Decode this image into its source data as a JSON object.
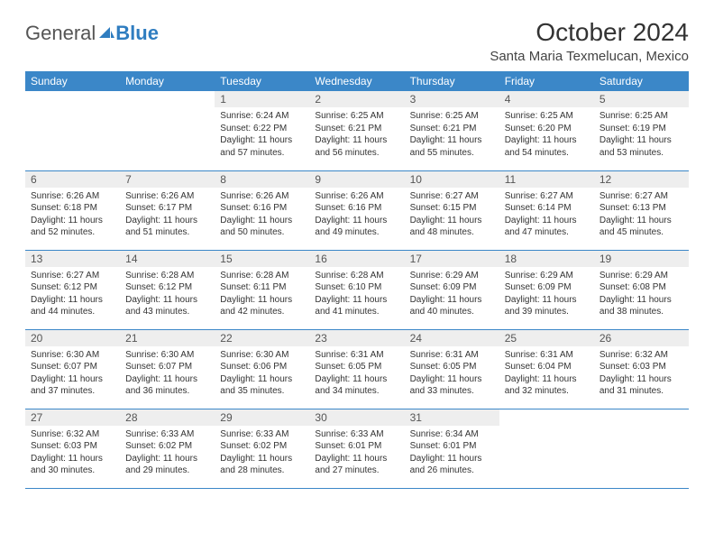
{
  "logo": {
    "text1": "General",
    "text2": "Blue"
  },
  "title": "October 2024",
  "location": "Santa Maria Texmelucan, Mexico",
  "colors": {
    "header_bg": "#3b87c8",
    "header_text": "#ffffff",
    "daynum_bg": "#eeeeee",
    "border": "#3b87c8",
    "logo_blue": "#2f7dc0"
  },
  "weekdays": [
    "Sunday",
    "Monday",
    "Tuesday",
    "Wednesday",
    "Thursday",
    "Friday",
    "Saturday"
  ],
  "weeks": [
    [
      null,
      null,
      {
        "n": "1",
        "sr": "6:24 AM",
        "ss": "6:22 PM",
        "dl": "11 hours and 57 minutes."
      },
      {
        "n": "2",
        "sr": "6:25 AM",
        "ss": "6:21 PM",
        "dl": "11 hours and 56 minutes."
      },
      {
        "n": "3",
        "sr": "6:25 AM",
        "ss": "6:21 PM",
        "dl": "11 hours and 55 minutes."
      },
      {
        "n": "4",
        "sr": "6:25 AM",
        "ss": "6:20 PM",
        "dl": "11 hours and 54 minutes."
      },
      {
        "n": "5",
        "sr": "6:25 AM",
        "ss": "6:19 PM",
        "dl": "11 hours and 53 minutes."
      }
    ],
    [
      {
        "n": "6",
        "sr": "6:26 AM",
        "ss": "6:18 PM",
        "dl": "11 hours and 52 minutes."
      },
      {
        "n": "7",
        "sr": "6:26 AM",
        "ss": "6:17 PM",
        "dl": "11 hours and 51 minutes."
      },
      {
        "n": "8",
        "sr": "6:26 AM",
        "ss": "6:16 PM",
        "dl": "11 hours and 50 minutes."
      },
      {
        "n": "9",
        "sr": "6:26 AM",
        "ss": "6:16 PM",
        "dl": "11 hours and 49 minutes."
      },
      {
        "n": "10",
        "sr": "6:27 AM",
        "ss": "6:15 PM",
        "dl": "11 hours and 48 minutes."
      },
      {
        "n": "11",
        "sr": "6:27 AM",
        "ss": "6:14 PM",
        "dl": "11 hours and 47 minutes."
      },
      {
        "n": "12",
        "sr": "6:27 AM",
        "ss": "6:13 PM",
        "dl": "11 hours and 45 minutes."
      }
    ],
    [
      {
        "n": "13",
        "sr": "6:27 AM",
        "ss": "6:12 PM",
        "dl": "11 hours and 44 minutes."
      },
      {
        "n": "14",
        "sr": "6:28 AM",
        "ss": "6:12 PM",
        "dl": "11 hours and 43 minutes."
      },
      {
        "n": "15",
        "sr": "6:28 AM",
        "ss": "6:11 PM",
        "dl": "11 hours and 42 minutes."
      },
      {
        "n": "16",
        "sr": "6:28 AM",
        "ss": "6:10 PM",
        "dl": "11 hours and 41 minutes."
      },
      {
        "n": "17",
        "sr": "6:29 AM",
        "ss": "6:09 PM",
        "dl": "11 hours and 40 minutes."
      },
      {
        "n": "18",
        "sr": "6:29 AM",
        "ss": "6:09 PM",
        "dl": "11 hours and 39 minutes."
      },
      {
        "n": "19",
        "sr": "6:29 AM",
        "ss": "6:08 PM",
        "dl": "11 hours and 38 minutes."
      }
    ],
    [
      {
        "n": "20",
        "sr": "6:30 AM",
        "ss": "6:07 PM",
        "dl": "11 hours and 37 minutes."
      },
      {
        "n": "21",
        "sr": "6:30 AM",
        "ss": "6:07 PM",
        "dl": "11 hours and 36 minutes."
      },
      {
        "n": "22",
        "sr": "6:30 AM",
        "ss": "6:06 PM",
        "dl": "11 hours and 35 minutes."
      },
      {
        "n": "23",
        "sr": "6:31 AM",
        "ss": "6:05 PM",
        "dl": "11 hours and 34 minutes."
      },
      {
        "n": "24",
        "sr": "6:31 AM",
        "ss": "6:05 PM",
        "dl": "11 hours and 33 minutes."
      },
      {
        "n": "25",
        "sr": "6:31 AM",
        "ss": "6:04 PM",
        "dl": "11 hours and 32 minutes."
      },
      {
        "n": "26",
        "sr": "6:32 AM",
        "ss": "6:03 PM",
        "dl": "11 hours and 31 minutes."
      }
    ],
    [
      {
        "n": "27",
        "sr": "6:32 AM",
        "ss": "6:03 PM",
        "dl": "11 hours and 30 minutes."
      },
      {
        "n": "28",
        "sr": "6:33 AM",
        "ss": "6:02 PM",
        "dl": "11 hours and 29 minutes."
      },
      {
        "n": "29",
        "sr": "6:33 AM",
        "ss": "6:02 PM",
        "dl": "11 hours and 28 minutes."
      },
      {
        "n": "30",
        "sr": "6:33 AM",
        "ss": "6:01 PM",
        "dl": "11 hours and 27 minutes."
      },
      {
        "n": "31",
        "sr": "6:34 AM",
        "ss": "6:01 PM",
        "dl": "11 hours and 26 minutes."
      },
      null,
      null
    ]
  ],
  "labels": {
    "sunrise": "Sunrise:",
    "sunset": "Sunset:",
    "daylight": "Daylight:"
  }
}
